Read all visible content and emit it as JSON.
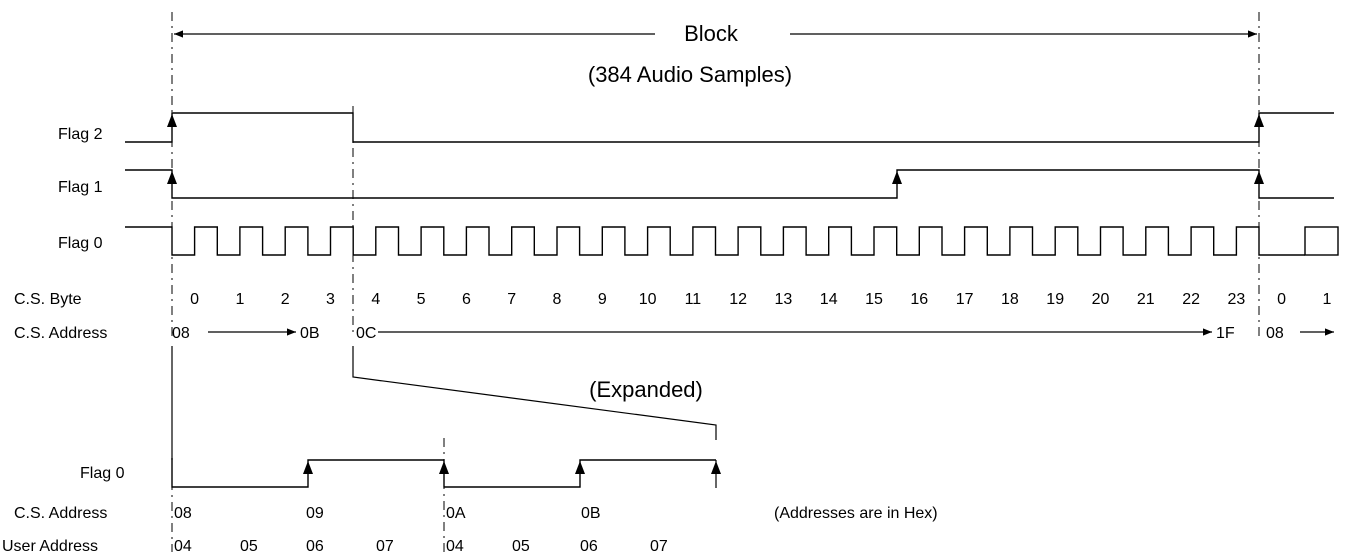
{
  "block": {
    "title": "Block",
    "subtitle": "(384 Audio Samples)"
  },
  "signals": {
    "flag2": "Flag 2",
    "flag1": "Flag 1",
    "flag0": "Flag 0",
    "cs_byte": "C.S. Byte",
    "cs_address": "C.S. Address"
  },
  "cs_bytes": [
    "0",
    "1",
    "2",
    "3",
    "4",
    "5",
    "6",
    "7",
    "8",
    "9",
    "10",
    "11",
    "12",
    "13",
    "14",
    "15",
    "16",
    "17",
    "18",
    "19",
    "20",
    "21",
    "22",
    "23",
    "0",
    "1"
  ],
  "cs_address_marks": {
    "start": "08",
    "group1_end": "0B",
    "group2_start": "0C",
    "group2_end": "1F",
    "next": "08"
  },
  "expanded": {
    "title": "(Expanded)",
    "flag0_label": "Flag 0",
    "cs_address_label": "C.S. Address",
    "user_address_label": "User Address",
    "cs_addresses": [
      "08",
      "09",
      "0A",
      "0B"
    ],
    "user_addresses": [
      "04",
      "05",
      "06",
      "07",
      "04",
      "05",
      "06",
      "07"
    ],
    "note": "(Addresses are in Hex)"
  }
}
